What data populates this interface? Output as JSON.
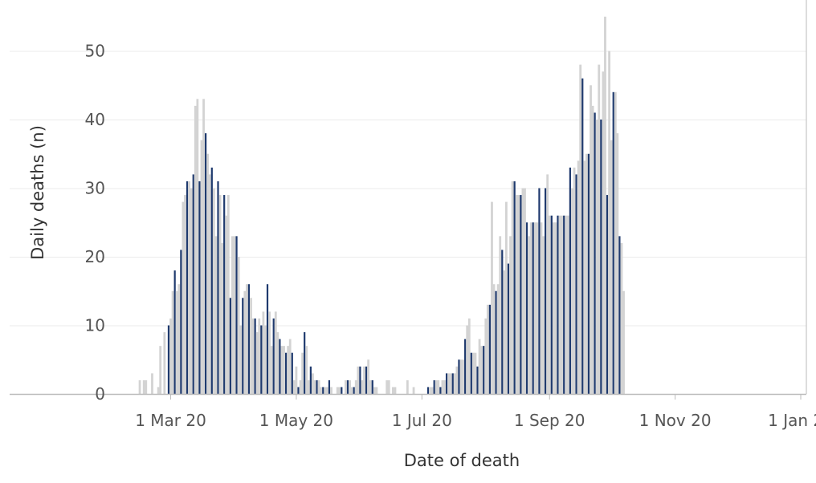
{
  "chart_data": {
    "type": "bar",
    "title": "",
    "xlabel": "Date of death",
    "ylabel": "Daily deaths (n)",
    "ylim": [
      0,
      57
    ],
    "y_ticks": [
      0,
      10,
      20,
      30,
      40,
      50
    ],
    "x_range": [
      "2020-02-06",
      "2021-02-12"
    ],
    "x_ticks": [
      {
        "date": "2020-03-01",
        "label": "1 Mar 20"
      },
      {
        "date": "2020-05-01",
        "label": "1 May 20"
      },
      {
        "date": "2020-07-01",
        "label": "1 Jul 20"
      },
      {
        "date": "2020-09-01",
        "label": "1 Sep 20"
      },
      {
        "date": "2020-11-01",
        "label": "1 Nov 20"
      },
      {
        "date": "2021-01-01",
        "label": "1 Jan 21"
      }
    ],
    "grid": true,
    "colors": {
      "daily": "#d3d3d3",
      "highlight": "#1f3a6e",
      "grid": "#ebebeb",
      "axis": "#bbbbbb"
    },
    "highlight_every_days": 3,
    "highlight_first_date": "2020-02-23",
    "series": [
      {
        "start_date": "2020-02-15",
        "values": [
          2,
          0,
          2,
          2,
          0,
          0,
          3,
          0,
          0,
          1,
          7,
          0,
          9,
          0,
          10,
          11,
          15,
          18,
          15,
          16,
          21,
          28,
          29,
          31,
          31,
          30,
          32,
          42,
          43,
          31,
          37,
          43,
          38,
          35,
          32,
          33,
          30,
          23,
          31,
          29,
          22,
          29,
          26,
          29,
          14,
          23,
          23,
          23,
          20,
          10,
          14,
          15,
          16,
          16,
          14,
          11,
          11,
          9,
          11,
          10,
          12,
          10,
          16,
          12,
          7,
          11,
          12,
          9,
          8,
          7,
          7,
          6,
          7,
          8,
          6,
          2,
          4,
          1,
          2,
          6,
          9,
          7,
          2,
          4,
          3,
          2,
          2,
          2,
          1,
          1,
          1,
          1,
          2,
          1,
          0,
          0,
          1,
          1,
          1,
          0,
          2,
          2,
          2,
          1,
          1,
          2,
          4,
          4,
          2,
          4,
          4,
          5,
          2,
          2,
          1,
          1,
          0,
          0,
          0,
          0,
          2,
          2,
          0,
          1,
          1,
          0,
          0,
          0,
          0,
          0,
          2,
          0,
          0,
          1,
          0,
          0,
          0,
          0,
          0,
          0,
          1,
          1,
          1,
          2,
          2,
          2,
          1,
          2,
          2,
          3,
          3,
          3,
          3,
          3,
          4,
          5,
          5,
          5,
          8,
          10,
          11,
          6,
          6,
          6,
          4,
          8,
          7,
          7,
          11,
          13,
          13,
          28,
          16,
          15,
          16,
          23,
          21,
          18,
          28,
          19,
          23,
          31,
          31,
          29,
          29,
          29,
          30,
          30,
          25,
          23,
          25,
          25,
          25,
          25,
          30,
          25,
          23,
          30,
          32,
          26,
          26,
          25,
          25,
          26,
          26,
          26,
          26,
          26,
          26,
          33,
          30,
          33,
          32,
          34,
          48,
          46,
          34,
          35,
          35,
          45,
          42,
          41,
          40,
          48,
          40,
          47,
          55,
          29,
          50,
          37,
          44,
          44,
          38,
          23,
          22,
          15
        ]
      }
    ]
  }
}
